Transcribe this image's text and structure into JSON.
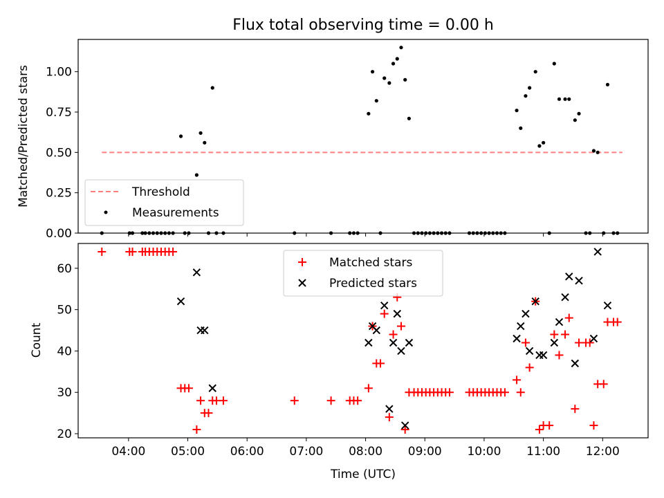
{
  "chart_data": [
    {
      "type": "scatter",
      "title": "Flux total observing time = 0.00 h",
      "xlabel": "",
      "ylabel": "Matched/Predicted stars",
      "xlim": [
        "03:09",
        "12:46"
      ],
      "ylim": [
        0,
        1.2
      ],
      "yticks": [
        0.0,
        0.25,
        0.5,
        0.75,
        1.0
      ],
      "ytick_labels": [
        "0.00",
        "0.25",
        "0.50",
        "0.75",
        "1.00"
      ],
      "grid": false,
      "legend": {
        "location": "lower-left",
        "entries": [
          "Threshold",
          "Measurements"
        ]
      },
      "series": [
        {
          "name": "Threshold",
          "kind": "dashed-line",
          "color": "#ff7f7f",
          "points": [
            {
              "x": "03:33",
              "y": 0.5
            },
            {
              "x": "12:20",
              "y": 0.5
            }
          ]
        },
        {
          "name": "Measurements",
          "kind": "dot",
          "color": "#000000",
          "points": [
            {
              "x": "03:33",
              "y": 0.0
            },
            {
              "x": "04:01",
              "y": 0.0
            },
            {
              "x": "04:04",
              "y": 0.0
            },
            {
              "x": "04:14",
              "y": 0.0
            },
            {
              "x": "04:17",
              "y": 0.0
            },
            {
              "x": "04:21",
              "y": 0.0
            },
            {
              "x": "04:25",
              "y": 0.0
            },
            {
              "x": "04:29",
              "y": 0.0
            },
            {
              "x": "04:33",
              "y": 0.0
            },
            {
              "x": "04:37",
              "y": 0.0
            },
            {
              "x": "04:41",
              "y": 0.0
            },
            {
              "x": "04:45",
              "y": 0.0
            },
            {
              "x": "04:53",
              "y": 0.6
            },
            {
              "x": "04:57",
              "y": 0.0
            },
            {
              "x": "05:01",
              "y": 0.0
            },
            {
              "x": "05:09",
              "y": 0.36
            },
            {
              "x": "05:13",
              "y": 0.62
            },
            {
              "x": "05:17",
              "y": 0.56
            },
            {
              "x": "05:21",
              "y": 0.0
            },
            {
              "x": "05:25",
              "y": 0.9
            },
            {
              "x": "05:29",
              "y": 0.0
            },
            {
              "x": "05:36",
              "y": 0.0
            },
            {
              "x": "06:48",
              "y": 0.0
            },
            {
              "x": "07:25",
              "y": 0.0
            },
            {
              "x": "07:44",
              "y": 0.0
            },
            {
              "x": "07:48",
              "y": 0.0
            },
            {
              "x": "07:52",
              "y": 0.0
            },
            {
              "x": "08:03",
              "y": 0.74
            },
            {
              "x": "08:07",
              "y": 1.0
            },
            {
              "x": "08:11",
              "y": 0.82
            },
            {
              "x": "08:15",
              "y": 0.0
            },
            {
              "x": "08:19",
              "y": 0.96
            },
            {
              "x": "08:24",
              "y": 0.93
            },
            {
              "x": "08:28",
              "y": 1.05
            },
            {
              "x": "08:32",
              "y": 1.08
            },
            {
              "x": "08:36",
              "y": 1.15
            },
            {
              "x": "08:40",
              "y": 0.95
            },
            {
              "x": "08:44",
              "y": 0.71
            },
            {
              "x": "08:49",
              "y": 0.0
            },
            {
              "x": "08:53",
              "y": 0.0
            },
            {
              "x": "08:57",
              "y": 0.0
            },
            {
              "x": "09:01",
              "y": 0.0
            },
            {
              "x": "09:05",
              "y": 0.0
            },
            {
              "x": "09:09",
              "y": 0.0
            },
            {
              "x": "09:13",
              "y": 0.0
            },
            {
              "x": "09:17",
              "y": 0.0
            },
            {
              "x": "09:21",
              "y": 0.0
            },
            {
              "x": "09:25",
              "y": 0.0
            },
            {
              "x": "09:45",
              "y": 0.0
            },
            {
              "x": "09:49",
              "y": 0.0
            },
            {
              "x": "09:53",
              "y": 0.0
            },
            {
              "x": "09:57",
              "y": 0.0
            },
            {
              "x": "10:01",
              "y": 0.0
            },
            {
              "x": "10:05",
              "y": 0.0
            },
            {
              "x": "10:09",
              "y": 0.0
            },
            {
              "x": "10:13",
              "y": 0.0
            },
            {
              "x": "10:17",
              "y": 0.0
            },
            {
              "x": "10:21",
              "y": 0.0
            },
            {
              "x": "10:33",
              "y": 0.76
            },
            {
              "x": "10:37",
              "y": 0.65
            },
            {
              "x": "10:42",
              "y": 0.85
            },
            {
              "x": "10:46",
              "y": 0.9
            },
            {
              "x": "10:52",
              "y": 1.0
            },
            {
              "x": "10:56",
              "y": 0.54
            },
            {
              "x": "11:00",
              "y": 0.56
            },
            {
              "x": "11:06",
              "y": 0.0
            },
            {
              "x": "11:11",
              "y": 1.05
            },
            {
              "x": "11:16",
              "y": 0.83
            },
            {
              "x": "11:22",
              "y": 0.83
            },
            {
              "x": "11:26",
              "y": 0.83
            },
            {
              "x": "11:32",
              "y": 0.7
            },
            {
              "x": "11:36",
              "y": 0.74
            },
            {
              "x": "11:43",
              "y": 0.0
            },
            {
              "x": "11:47",
              "y": 0.0
            },
            {
              "x": "11:51",
              "y": 0.51
            },
            {
              "x": "11:55",
              "y": 0.5
            },
            {
              "x": "12:01",
              "y": 0.0
            },
            {
              "x": "12:05",
              "y": 0.92
            },
            {
              "x": "12:11",
              "y": 0.0
            },
            {
              "x": "12:15",
              "y": 0.0
            }
          ]
        }
      ]
    },
    {
      "type": "scatter",
      "title": "",
      "xlabel": "Time (UTC)",
      "ylabel": "Count",
      "xlim": [
        "03:09",
        "12:46"
      ],
      "ylim": [
        19,
        66
      ],
      "yticks": [
        20,
        30,
        40,
        50,
        60
      ],
      "ytick_labels": [
        "20",
        "30",
        "40",
        "50",
        "60"
      ],
      "xticks": [
        "04:00",
        "05:00",
        "06:00",
        "07:00",
        "08:00",
        "09:00",
        "10:00",
        "11:00",
        "12:00"
      ],
      "xtick_labels": [
        "04:00",
        "05:00",
        "06:00",
        "07:00",
        "08:00",
        "09:00",
        "10:00",
        "11:00",
        "12:00"
      ],
      "grid": false,
      "legend": {
        "location": "upper-center",
        "entries": [
          "Matched stars",
          "Predicted stars"
        ]
      },
      "series": [
        {
          "name": "Matched stars",
          "marker": "plus",
          "color": "#ff0000",
          "points": [
            {
              "x": "03:33",
              "y": 64
            },
            {
              "x": "04:01",
              "y": 64
            },
            {
              "x": "04:04",
              "y": 64
            },
            {
              "x": "04:14",
              "y": 64
            },
            {
              "x": "04:17",
              "y": 64
            },
            {
              "x": "04:21",
              "y": 64
            },
            {
              "x": "04:25",
              "y": 64
            },
            {
              "x": "04:29",
              "y": 64
            },
            {
              "x": "04:33",
              "y": 64
            },
            {
              "x": "04:37",
              "y": 64
            },
            {
              "x": "04:41",
              "y": 64
            },
            {
              "x": "04:45",
              "y": 64
            },
            {
              "x": "04:53",
              "y": 31
            },
            {
              "x": "04:57",
              "y": 31
            },
            {
              "x": "05:01",
              "y": 31
            },
            {
              "x": "05:09",
              "y": 21
            },
            {
              "x": "05:13",
              "y": 28
            },
            {
              "x": "05:17",
              "y": 25
            },
            {
              "x": "05:21",
              "y": 25
            },
            {
              "x": "05:25",
              "y": 28
            },
            {
              "x": "05:29",
              "y": 28
            },
            {
              "x": "05:36",
              "y": 28
            },
            {
              "x": "06:48",
              "y": 28
            },
            {
              "x": "07:25",
              "y": 28
            },
            {
              "x": "07:44",
              "y": 28
            },
            {
              "x": "07:48",
              "y": 28
            },
            {
              "x": "07:52",
              "y": 28
            },
            {
              "x": "08:03",
              "y": 31
            },
            {
              "x": "08:07",
              "y": 46
            },
            {
              "x": "08:11",
              "y": 37
            },
            {
              "x": "08:15",
              "y": 37
            },
            {
              "x": "08:19",
              "y": 49
            },
            {
              "x": "08:24",
              "y": 24
            },
            {
              "x": "08:28",
              "y": 44
            },
            {
              "x": "08:32",
              "y": 53
            },
            {
              "x": "08:36",
              "y": 46
            },
            {
              "x": "08:40",
              "y": 21
            },
            {
              "x": "08:44",
              "y": 30
            },
            {
              "x": "08:49",
              "y": 30
            },
            {
              "x": "08:53",
              "y": 30
            },
            {
              "x": "08:57",
              "y": 30
            },
            {
              "x": "09:01",
              "y": 30
            },
            {
              "x": "09:05",
              "y": 30
            },
            {
              "x": "09:09",
              "y": 30
            },
            {
              "x": "09:13",
              "y": 30
            },
            {
              "x": "09:17",
              "y": 30
            },
            {
              "x": "09:21",
              "y": 30
            },
            {
              "x": "09:25",
              "y": 30
            },
            {
              "x": "09:45",
              "y": 30
            },
            {
              "x": "09:49",
              "y": 30
            },
            {
              "x": "09:53",
              "y": 30
            },
            {
              "x": "09:57",
              "y": 30
            },
            {
              "x": "10:01",
              "y": 30
            },
            {
              "x": "10:05",
              "y": 30
            },
            {
              "x": "10:09",
              "y": 30
            },
            {
              "x": "10:13",
              "y": 30
            },
            {
              "x": "10:17",
              "y": 30
            },
            {
              "x": "10:21",
              "y": 30
            },
            {
              "x": "10:33",
              "y": 33
            },
            {
              "x": "10:37",
              "y": 30
            },
            {
              "x": "10:42",
              "y": 42
            },
            {
              "x": "10:46",
              "y": 36
            },
            {
              "x": "10:52",
              "y": 52
            },
            {
              "x": "10:56",
              "y": 21
            },
            {
              "x": "11:00",
              "y": 22
            },
            {
              "x": "11:06",
              "y": 22
            },
            {
              "x": "11:11",
              "y": 44
            },
            {
              "x": "11:16",
              "y": 39
            },
            {
              "x": "11:22",
              "y": 44
            },
            {
              "x": "11:26",
              "y": 48
            },
            {
              "x": "11:32",
              "y": 26
            },
            {
              "x": "11:36",
              "y": 42
            },
            {
              "x": "11:43",
              "y": 42
            },
            {
              "x": "11:47",
              "y": 42
            },
            {
              "x": "11:51",
              "y": 22
            },
            {
              "x": "11:55",
              "y": 32
            },
            {
              "x": "12:01",
              "y": 32
            },
            {
              "x": "12:05",
              "y": 47
            },
            {
              "x": "12:11",
              "y": 47
            },
            {
              "x": "12:15",
              "y": 47
            }
          ]
        },
        {
          "name": "Predicted stars",
          "marker": "x",
          "color": "#000000",
          "points": [
            {
              "x": "04:53",
              "y": 52
            },
            {
              "x": "05:09",
              "y": 59
            },
            {
              "x": "05:13",
              "y": 45
            },
            {
              "x": "05:17",
              "y": 45
            },
            {
              "x": "05:25",
              "y": 31
            },
            {
              "x": "08:03",
              "y": 42
            },
            {
              "x": "08:07",
              "y": 46
            },
            {
              "x": "08:11",
              "y": 45
            },
            {
              "x": "08:19",
              "y": 51
            },
            {
              "x": "08:24",
              "y": 26
            },
            {
              "x": "08:28",
              "y": 42
            },
            {
              "x": "08:32",
              "y": 49
            },
            {
              "x": "08:36",
              "y": 40
            },
            {
              "x": "08:40",
              "y": 22
            },
            {
              "x": "08:44",
              "y": 42
            },
            {
              "x": "10:33",
              "y": 43
            },
            {
              "x": "10:37",
              "y": 46
            },
            {
              "x": "10:42",
              "y": 49
            },
            {
              "x": "10:46",
              "y": 40
            },
            {
              "x": "10:52",
              "y": 52
            },
            {
              "x": "10:56",
              "y": 39
            },
            {
              "x": "11:00",
              "y": 39
            },
            {
              "x": "11:11",
              "y": 42
            },
            {
              "x": "11:16",
              "y": 47
            },
            {
              "x": "11:22",
              "y": 53
            },
            {
              "x": "11:26",
              "y": 58
            },
            {
              "x": "11:32",
              "y": 37
            },
            {
              "x": "11:36",
              "y": 57
            },
            {
              "x": "11:51",
              "y": 43
            },
            {
              "x": "11:55",
              "y": 64
            },
            {
              "x": "12:05",
              "y": 51
            }
          ]
        }
      ]
    }
  ]
}
